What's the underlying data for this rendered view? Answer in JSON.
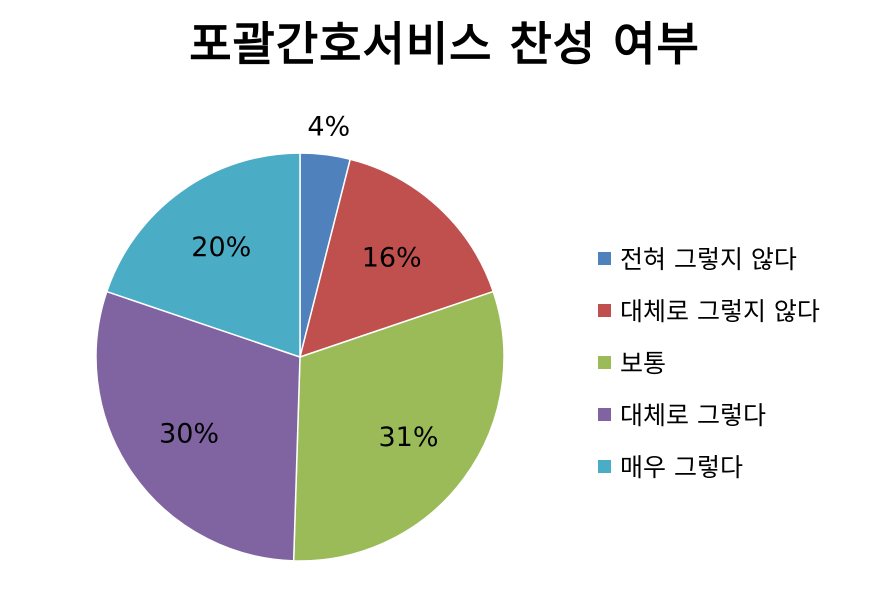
{
  "chart_data": {
    "type": "pie",
    "title": "포괄간호서비스 찬성 여부",
    "legend_position": "right",
    "categories": [
      "전혀 그렇지 않다",
      "대체로 그렇지 않다",
      "보통",
      "대체로 그렇다",
      "매우 그렇다"
    ],
    "values": [
      4,
      16,
      31,
      30,
      20
    ],
    "data_labels": [
      "4%",
      "16%",
      "31%",
      "30%",
      "20%"
    ],
    "colors": [
      "#4F81BD",
      "#C0504D",
      "#9BBB59",
      "#8064A2",
      "#4BACC6"
    ]
  }
}
